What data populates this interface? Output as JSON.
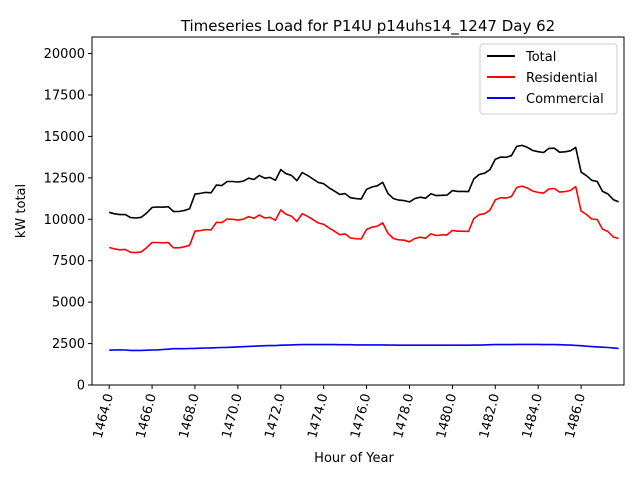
{
  "chart_data": {
    "type": "line",
    "title": "Timeseries Load for P14U p14uhs14_1247  Day 62",
    "xlabel": "Hour of Year",
    "ylabel": "kW total",
    "xlim": [
      1463.2,
      1488.0
    ],
    "ylim": [
      0,
      21000
    ],
    "xticks": [
      1464,
      1466,
      1468,
      1470,
      1472,
      1474,
      1476,
      1478,
      1480,
      1482,
      1484,
      1486
    ],
    "xtick_labels": [
      "1464.0",
      "1466.0",
      "1468.0",
      "1470.0",
      "1472.0",
      "1474.0",
      "1476.0",
      "1478.0",
      "1480.0",
      "1482.0",
      "1484.0",
      "1486.0"
    ],
    "yticks": [
      0,
      2500,
      5000,
      7500,
      10000,
      12500,
      15000,
      17500,
      20000
    ],
    "ytick_labels": [
      "0",
      "2500",
      "5000",
      "7500",
      "10000",
      "12500",
      "15000",
      "17500",
      "20000"
    ],
    "legend_position": "top-right",
    "x_start": 1464.0,
    "x_step": 0.25,
    "series": [
      {
        "name": "Total",
        "color": "#000000",
        "values": [
          10420,
          10330,
          10280,
          10290,
          10100,
          10080,
          10120,
          10380,
          10720,
          10740,
          10730,
          10760,
          10470,
          10470,
          10530,
          10640,
          11520,
          11560,
          11620,
          11600,
          12060,
          12030,
          12280,
          12280,
          12250,
          12300,
          12480,
          12400,
          12650,
          12480,
          12530,
          12350,
          13000,
          12750,
          12650,
          12330,
          12820,
          12650,
          12430,
          12220,
          12150,
          11900,
          11700,
          11500,
          11550,
          11300,
          11250,
          11220,
          11810,
          11950,
          12020,
          12230,
          11550,
          11250,
          11160,
          11130,
          11050,
          11250,
          11330,
          11270,
          11540,
          11430,
          11450,
          11460,
          11730,
          11680,
          11680,
          11670,
          12430,
          12700,
          12780,
          12990,
          13620,
          13750,
          13740,
          13840,
          14400,
          14460,
          14340,
          14150,
          14080,
          14030,
          14280,
          14290,
          14050,
          14070,
          14130,
          14340,
          12850,
          12630,
          12350,
          12280,
          11680,
          11530,
          11190,
          11050
        ]
      },
      {
        "name": "Residential",
        "color": "#ff0000",
        "values": [
          8300,
          8210,
          8160,
          8180,
          8010,
          7990,
          8030,
          8290,
          8600,
          8600,
          8580,
          8600,
          8280,
          8280,
          8340,
          8430,
          9280,
          9320,
          9380,
          9360,
          9820,
          9800,
          10020,
          10000,
          9950,
          10000,
          10160,
          10060,
          10250,
          10080,
          10120,
          9940,
          10560,
          10300,
          10180,
          9870,
          10340,
          10180,
          9980,
          9780,
          9700,
          9480,
          9280,
          9070,
          9120,
          8870,
          8830,
          8810,
          9390,
          9520,
          9580,
          9780,
          9160,
          8840,
          8760,
          8740,
          8640,
          8840,
          8920,
          8860,
          9120,
          9020,
          9060,
          9060,
          9330,
          9280,
          9280,
          9260,
          10040,
          10280,
          10340,
          10540,
          11170,
          11300,
          11280,
          11370,
          11920,
          12000,
          11880,
          11700,
          11620,
          11580,
          11830,
          11860,
          11640,
          11670,
          11740,
          11970,
          10500,
          10290,
          10020,
          9990,
          9410,
          9260,
          8930,
          8840
        ]
      },
      {
        "name": "Commercial",
        "color": "#0000ff",
        "values": [
          2100,
          2120,
          2120,
          2110,
          2090,
          2090,
          2090,
          2100,
          2110,
          2120,
          2140,
          2160,
          2190,
          2190,
          2190,
          2200,
          2210,
          2220,
          2230,
          2240,
          2250,
          2260,
          2270,
          2280,
          2300,
          2310,
          2330,
          2340,
          2360,
          2370,
          2380,
          2380,
          2400,
          2410,
          2420,
          2430,
          2440,
          2440,
          2440,
          2440,
          2440,
          2440,
          2440,
          2430,
          2430,
          2430,
          2420,
          2420,
          2420,
          2420,
          2420,
          2420,
          2410,
          2410,
          2400,
          2400,
          2400,
          2400,
          2400,
          2400,
          2400,
          2400,
          2400,
          2400,
          2400,
          2400,
          2400,
          2400,
          2410,
          2410,
          2420,
          2430,
          2440,
          2440,
          2440,
          2440,
          2450,
          2450,
          2450,
          2450,
          2450,
          2440,
          2440,
          2440,
          2430,
          2420,
          2410,
          2390,
          2370,
          2340,
          2320,
          2300,
          2280,
          2260,
          2240,
          2210
        ]
      }
    ]
  }
}
